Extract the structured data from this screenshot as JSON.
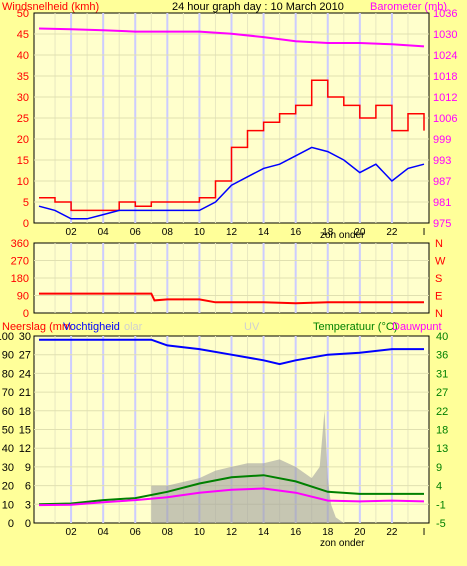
{
  "chart_data": [
    {
      "type": "line",
      "title": "24 hour graph day : 10 March 2010",
      "left_label": "Windsnelheid (kmh)",
      "right_label": "Barometer (mb)",
      "left_ticks": [
        "50",
        "45",
        "40",
        "35",
        "30",
        "25",
        "20",
        "15",
        "10",
        "5",
        "0"
      ],
      "right_ticks": [
        "1036",
        "1030",
        "1024",
        "1018",
        "1012",
        "1006",
        "999",
        "993",
        "987",
        "981",
        "975"
      ],
      "x_ticks": [
        "02",
        "04",
        "06",
        "08",
        "10",
        "12",
        "14",
        "16",
        "18",
        "20",
        "22"
      ],
      "x_note": "zon onder",
      "ylim_left": [
        0,
        50
      ],
      "ylim_right": [
        975,
        1036
      ],
      "colors": {
        "gust": "#ff0000",
        "wind": "#0000ff",
        "pressure": "#ff00ff"
      },
      "series": [
        {
          "key": "gust",
          "x": [
            0,
            1,
            2,
            3,
            4,
            5,
            6,
            7,
            8,
            9,
            10,
            11,
            12,
            13,
            14,
            15,
            16,
            17,
            18,
            19,
            20,
            21,
            22,
            23,
            24
          ],
          "values": [
            6,
            5,
            3,
            3,
            3,
            5,
            4,
            5,
            5,
            5,
            6,
            10,
            18,
            22,
            24,
            26,
            28,
            34,
            30,
            28,
            25,
            28,
            22,
            26,
            22
          ]
        },
        {
          "key": "wind",
          "x": [
            0,
            1,
            2,
            3,
            4,
            5,
            6,
            7,
            8,
            9,
            10,
            11,
            12,
            13,
            14,
            15,
            16,
            17,
            18,
            19,
            20,
            21,
            22,
            23,
            24
          ],
          "values": [
            4,
            3,
            1,
            1,
            2,
            3,
            3,
            3,
            3,
            3,
            3,
            5,
            9,
            11,
            13,
            14,
            16,
            18,
            17,
            15,
            12,
            14,
            10,
            13,
            14
          ]
        },
        {
          "key": "pressure",
          "x": [
            0,
            2,
            4,
            6,
            8,
            10,
            12,
            14,
            16,
            18,
            20,
            22,
            24
          ],
          "values": [
            1031.5,
            1031.3,
            1031,
            1030.6,
            1030.6,
            1030.6,
            1030,
            1029,
            1027.8,
            1027.3,
            1027.3,
            1026.9,
            1026.3
          ]
        }
      ]
    },
    {
      "type": "line",
      "left_ticks": [
        "360",
        "270",
        "180",
        "90",
        "0"
      ],
      "right_ticks": [
        "N",
        "W",
        "S",
        "E",
        "N"
      ],
      "ylim": [
        0,
        360
      ],
      "series": [
        {
          "key": "direction",
          "color": "#ff0000",
          "x": [
            0,
            2,
            4,
            6,
            7,
            7.2,
            8,
            9,
            10,
            11,
            12,
            14,
            16,
            18,
            20,
            22,
            24
          ],
          "values": [
            100,
            100,
            100,
            100,
            100,
            65,
            70,
            70,
            70,
            55,
            55,
            55,
            50,
            55,
            55,
            55,
            55
          ]
        }
      ]
    },
    {
      "type": "line",
      "left_label": "Neerslag (mm",
      "left_label2": "Vochtigheid",
      "solar_label": "olar",
      "uv_label": "UV",
      "right_label": "Temperatuur (°C)",
      "right_label2": "Dauwpunt",
      "left_ticks_outer": [
        "100",
        "90",
        "80",
        "70",
        "60",
        "50",
        "40",
        "30",
        "20",
        "10",
        "0"
      ],
      "left_ticks_inner": [
        "30",
        "27",
        "24",
        "21",
        "18",
        "15",
        "12",
        "9",
        "6",
        "3",
        "0"
      ],
      "right_ticks": [
        "40",
        "36",
        "31",
        "27",
        "22",
        "18",
        "13",
        "9",
        "4",
        "-1",
        "-5"
      ],
      "x_ticks": [
        "02",
        "04",
        "06",
        "08",
        "10",
        "12",
        "14",
        "16",
        "18",
        "20",
        "22"
      ],
      "x_note": "zon onder",
      "ylim_left": [
        0,
        100
      ],
      "ylim_right": [
        -5,
        40
      ],
      "series": [
        {
          "key": "humidity",
          "color": "#0000ff",
          "x": [
            0,
            2,
            4,
            6,
            7,
            8,
            10,
            12,
            14,
            15,
            16,
            18,
            20,
            22,
            24
          ],
          "values": [
            98,
            98,
            98,
            98,
            98,
            95,
            93,
            90,
            87,
            85,
            87,
            90,
            91,
            93,
            93
          ]
        },
        {
          "key": "temperature",
          "color": "#008000",
          "x": [
            0,
            2,
            4,
            6,
            8,
            10,
            12,
            14,
            16,
            18,
            20,
            22,
            24
          ],
          "values": [
            -0.5,
            -0.3,
            0.5,
            1,
            2.5,
            4.5,
            6,
            6.5,
            5,
            2.5,
            2,
            2,
            2
          ]
        },
        {
          "key": "dewpoint",
          "color": "#ff00ff",
          "x": [
            0,
            2,
            4,
            6,
            8,
            10,
            12,
            14,
            16,
            18,
            20,
            22,
            24
          ],
          "values": [
            -0.7,
            -0.6,
            0,
            0.5,
            1.2,
            2.3,
            3,
            3.3,
            2.3,
            0.4,
            0.2,
            0.4,
            0.2
          ]
        },
        {
          "key": "solar",
          "color": "#a0a0a0",
          "x": [
            7,
            8,
            9,
            10,
            11,
            12,
            13,
            14,
            15,
            16,
            17,
            17.5,
            17.8,
            18,
            18.2,
            18.5,
            19
          ],
          "values": [
            20,
            20,
            22,
            24,
            28,
            30,
            32,
            32,
            34,
            30,
            24,
            30,
            60,
            24,
            10,
            3,
            0
          ]
        }
      ]
    }
  ]
}
